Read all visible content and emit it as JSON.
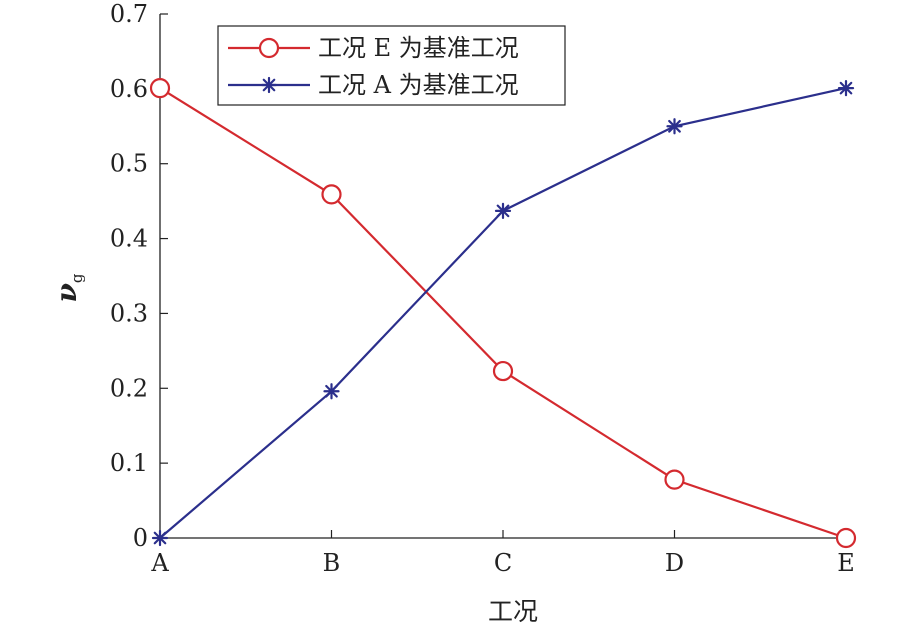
{
  "chart_data": {
    "type": "line",
    "categories": [
      "A",
      "B",
      "C",
      "D",
      "E"
    ],
    "xlabel": "工况",
    "ylabel": "ν",
    "ylabel_sub": "g",
    "ylim": [
      0,
      0.7
    ],
    "yticks": [
      "0",
      "0.1",
      "0.2",
      "0.3",
      "0.4",
      "0.5",
      "0.6",
      "0.7"
    ],
    "grid": false,
    "legend_position": "top-left",
    "series": [
      {
        "name": "工况 E 为基准工况",
        "values": [
          0.601,
          0.459,
          0.223,
          0.078,
          0.0
        ],
        "color": "#d42a2f",
        "marker": "circle"
      },
      {
        "name": "工况 A 为基准工况",
        "values": [
          0.0,
          0.196,
          0.437,
          0.55,
          0.601
        ],
        "color": "#2b2f8c",
        "marker": "asterisk"
      }
    ]
  }
}
